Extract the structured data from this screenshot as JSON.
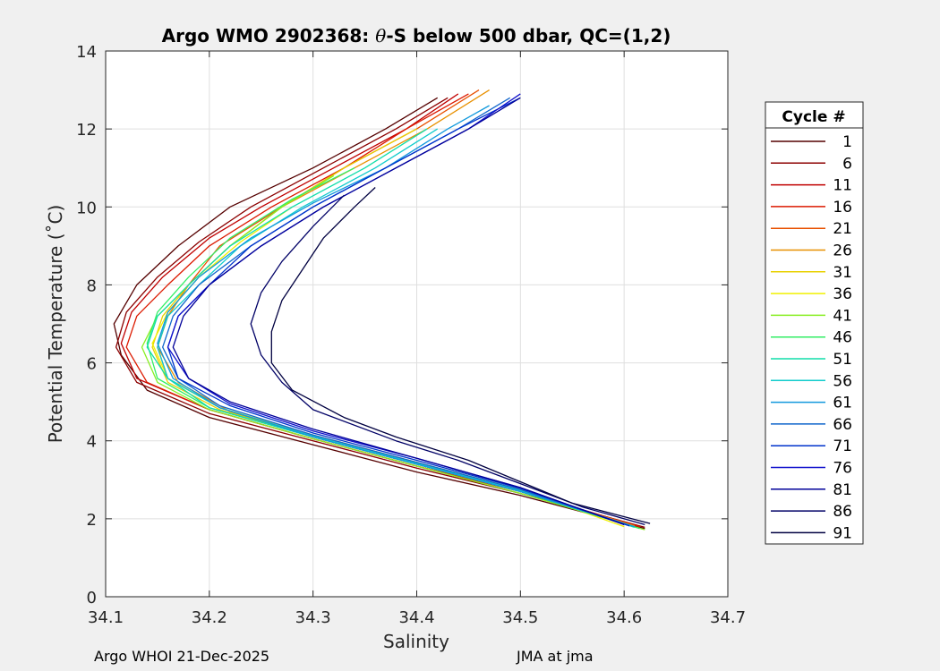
{
  "chart_data": {
    "type": "line",
    "title_prefix": "Argo WMO 2902368: ",
    "title_symbol": "θ",
    "title_suffix": "-S below 500 dbar,  QC=(1,2)",
    "xlabel": "Salinity",
    "ylabel": "Potential Temperature (˚C)",
    "xlim": [
      34.1,
      34.7
    ],
    "ylim": [
      0,
      14
    ],
    "xticks": [
      34.1,
      34.2,
      34.3,
      34.4,
      34.5,
      34.6,
      34.7
    ],
    "yticks": [
      0,
      2,
      4,
      6,
      8,
      10,
      12,
      14
    ],
    "xtick_labels": [
      "34.1",
      "34.2",
      "34.3",
      "34.4",
      "34.5",
      "34.6",
      "34.7"
    ],
    "ytick_labels": [
      "0",
      "2",
      "4",
      "6",
      "8",
      "10",
      "12",
      "14"
    ],
    "grid": true,
    "legend_position": "outside-right",
    "legend_title": "Cycle #",
    "legend": [
      {
        "label": "1",
        "color": "#550000"
      },
      {
        "label": "6",
        "color": "#8c0000"
      },
      {
        "label": "11",
        "color": "#c00000"
      },
      {
        "label": "16",
        "color": "#dc1a00"
      },
      {
        "label": "21",
        "color": "#e85000"
      },
      {
        "label": "26",
        "color": "#e89000"
      },
      {
        "label": "31",
        "color": "#e8d000"
      },
      {
        "label": "36",
        "color": "#f0f000"
      },
      {
        "label": "41",
        "color": "#88ee22"
      },
      {
        "label": "46",
        "color": "#33ee66"
      },
      {
        "label": "51",
        "color": "#11ddaa"
      },
      {
        "label": "56",
        "color": "#11cccc"
      },
      {
        "label": "61",
        "color": "#1199dd"
      },
      {
        "label": "66",
        "color": "#1166cc"
      },
      {
        "label": "71",
        "color": "#0033cc"
      },
      {
        "label": "76",
        "color": "#1111cc"
      },
      {
        "label": "81",
        "color": "#000099"
      },
      {
        "label": "86",
        "color": "#000066"
      },
      {
        "label": "91",
        "color": "#000040"
      }
    ],
    "series": [
      {
        "name": "1",
        "color": "#550000",
        "points": [
          [
            34.62,
            1.75
          ],
          [
            34.5,
            2.6
          ],
          [
            34.4,
            3.2
          ],
          [
            34.3,
            3.9
          ],
          [
            34.2,
            4.6
          ],
          [
            34.14,
            5.3
          ],
          [
            34.115,
            6.2
          ],
          [
            34.108,
            7.0
          ],
          [
            34.13,
            8.0
          ],
          [
            34.17,
            9.0
          ],
          [
            34.22,
            10.0
          ],
          [
            34.3,
            11.0
          ],
          [
            34.37,
            12.0
          ],
          [
            34.42,
            12.8
          ]
        ]
      },
      {
        "name": "6",
        "color": "#8c0000",
        "points": [
          [
            34.62,
            1.78
          ],
          [
            34.5,
            2.65
          ],
          [
            34.4,
            3.3
          ],
          [
            34.3,
            4.0
          ],
          [
            34.2,
            4.7
          ],
          [
            34.13,
            5.5
          ],
          [
            34.11,
            6.4
          ],
          [
            34.12,
            7.3
          ],
          [
            34.15,
            8.2
          ],
          [
            34.19,
            9.1
          ],
          [
            34.24,
            10.0
          ],
          [
            34.31,
            11.0
          ],
          [
            34.38,
            12.0
          ],
          [
            34.43,
            12.8
          ]
        ]
      },
      {
        "name": "11",
        "color": "#c00000",
        "points": [
          [
            34.615,
            1.8
          ],
          [
            34.5,
            2.7
          ],
          [
            34.4,
            3.35
          ],
          [
            34.3,
            4.05
          ],
          [
            34.2,
            4.8
          ],
          [
            34.13,
            5.6
          ],
          [
            34.115,
            6.5
          ],
          [
            34.125,
            7.3
          ],
          [
            34.155,
            8.2
          ],
          [
            34.2,
            9.2
          ],
          [
            34.25,
            10.0
          ],
          [
            34.32,
            11.0
          ],
          [
            34.39,
            12.0
          ],
          [
            34.44,
            12.9
          ]
        ]
      },
      {
        "name": "16",
        "color": "#dc1a00",
        "points": [
          [
            34.615,
            1.8
          ],
          [
            34.5,
            2.7
          ],
          [
            34.4,
            3.35
          ],
          [
            34.3,
            4.05
          ],
          [
            34.2,
            4.8
          ],
          [
            34.14,
            5.5
          ],
          [
            34.12,
            6.4
          ],
          [
            34.13,
            7.2
          ],
          [
            34.16,
            8.0
          ],
          [
            34.2,
            9.0
          ],
          [
            34.26,
            10.0
          ],
          [
            34.33,
            11.0
          ],
          [
            34.39,
            12.0
          ],
          [
            34.45,
            12.9
          ]
        ]
      },
      {
        "name": "21",
        "color": "#e85000",
        "points": [
          [
            34.61,
            1.82
          ],
          [
            34.5,
            2.7
          ],
          [
            34.4,
            3.4
          ],
          [
            34.3,
            4.1
          ],
          [
            34.21,
            4.85
          ],
          [
            34.16,
            5.6
          ],
          [
            34.15,
            6.4
          ],
          [
            34.16,
            7.2
          ],
          [
            34.18,
            8.0
          ],
          [
            34.21,
            9.0
          ],
          [
            34.27,
            10.0
          ],
          [
            34.33,
            11.0
          ],
          [
            34.4,
            12.0
          ],
          [
            34.46,
            13.0
          ]
        ]
      },
      {
        "name": "26",
        "color": "#e89000",
        "points": [
          [
            34.61,
            1.82
          ],
          [
            34.5,
            2.7
          ],
          [
            34.4,
            3.4
          ],
          [
            34.3,
            4.1
          ],
          [
            34.22,
            4.75
          ],
          [
            34.17,
            5.5
          ],
          [
            34.15,
            6.4
          ],
          [
            34.16,
            7.2
          ],
          [
            34.18,
            8.0
          ],
          [
            34.22,
            9.0
          ],
          [
            34.27,
            10.0
          ],
          [
            34.34,
            11.0
          ],
          [
            34.41,
            12.0
          ],
          [
            34.47,
            13.0
          ]
        ]
      },
      {
        "name": "31",
        "color": "#e8d000",
        "points": [
          [
            34.61,
            1.8
          ],
          [
            34.5,
            2.7
          ],
          [
            34.4,
            3.4
          ],
          [
            34.3,
            4.1
          ],
          [
            34.21,
            4.8
          ],
          [
            34.16,
            5.5
          ],
          [
            34.145,
            6.4
          ],
          [
            34.155,
            7.2
          ],
          [
            34.18,
            8.0
          ],
          [
            34.22,
            9.0
          ],
          [
            34.27,
            10.0
          ],
          [
            34.33,
            11.0
          ],
          [
            34.4,
            12.0
          ]
        ]
      },
      {
        "name": "36",
        "color": "#f0f000",
        "points": [
          [
            34.6,
            1.8
          ],
          [
            34.5,
            2.75
          ],
          [
            34.4,
            3.45
          ],
          [
            34.3,
            4.15
          ],
          [
            34.21,
            4.85
          ],
          [
            34.16,
            5.6
          ],
          [
            34.145,
            6.5
          ],
          [
            34.16,
            7.3
          ],
          [
            34.19,
            8.2
          ],
          [
            34.23,
            9.1
          ],
          [
            34.28,
            10.0
          ]
        ]
      },
      {
        "name": "41",
        "color": "#88ee22",
        "points": [
          [
            34.62,
            1.72
          ],
          [
            34.5,
            2.65
          ],
          [
            34.4,
            3.35
          ],
          [
            34.3,
            4.05
          ],
          [
            34.2,
            4.8
          ],
          [
            34.15,
            5.5
          ],
          [
            34.135,
            6.4
          ],
          [
            34.15,
            7.2
          ],
          [
            34.18,
            8.0
          ],
          [
            34.22,
            9.0
          ],
          [
            34.27,
            10.0
          ],
          [
            34.32,
            10.8
          ]
        ]
      },
      {
        "name": "46",
        "color": "#33ee66",
        "points": [
          [
            34.615,
            1.75
          ],
          [
            34.5,
            2.7
          ],
          [
            34.4,
            3.4
          ],
          [
            34.3,
            4.1
          ],
          [
            34.2,
            4.85
          ],
          [
            34.15,
            5.6
          ],
          [
            34.14,
            6.5
          ],
          [
            34.15,
            7.3
          ],
          [
            34.18,
            8.2
          ],
          [
            34.22,
            9.2
          ],
          [
            34.28,
            10.2
          ],
          [
            34.34,
            11.0
          ]
        ]
      },
      {
        "name": "51",
        "color": "#11ddaa",
        "points": [
          [
            34.61,
            1.78
          ],
          [
            34.5,
            2.7
          ],
          [
            34.4,
            3.4
          ],
          [
            34.3,
            4.1
          ],
          [
            34.2,
            4.85
          ],
          [
            34.16,
            5.6
          ],
          [
            34.14,
            6.4
          ],
          [
            34.15,
            7.2
          ],
          [
            34.18,
            8.0
          ],
          [
            34.22,
            9.0
          ],
          [
            34.28,
            10.0
          ],
          [
            34.35,
            11.0
          ],
          [
            34.41,
            12.0
          ]
        ]
      },
      {
        "name": "56",
        "color": "#11cccc",
        "points": [
          [
            34.61,
            1.8
          ],
          [
            34.5,
            2.72
          ],
          [
            34.4,
            3.42
          ],
          [
            34.3,
            4.12
          ],
          [
            34.21,
            4.85
          ],
          [
            34.16,
            5.6
          ],
          [
            34.15,
            6.4
          ],
          [
            34.16,
            7.2
          ],
          [
            34.19,
            8.0
          ],
          [
            34.23,
            9.0
          ],
          [
            34.29,
            10.0
          ],
          [
            34.36,
            11.0
          ],
          [
            34.42,
            12.0
          ]
        ]
      },
      {
        "name": "61",
        "color": "#1199dd",
        "points": [
          [
            34.61,
            1.8
          ],
          [
            34.5,
            2.7
          ],
          [
            34.4,
            3.4
          ],
          [
            34.3,
            4.1
          ],
          [
            34.21,
            4.85
          ],
          [
            34.165,
            5.6
          ],
          [
            34.15,
            6.5
          ],
          [
            34.16,
            7.3
          ],
          [
            34.19,
            8.2
          ],
          [
            34.24,
            9.2
          ],
          [
            34.3,
            10.1
          ],
          [
            34.37,
            11.0
          ],
          [
            34.43,
            12.0
          ],
          [
            34.47,
            12.6
          ]
        ]
      },
      {
        "name": "66",
        "color": "#1166cc",
        "points": [
          [
            34.605,
            1.82
          ],
          [
            34.5,
            2.75
          ],
          [
            34.4,
            3.45
          ],
          [
            34.3,
            4.15
          ],
          [
            34.21,
            4.9
          ],
          [
            34.17,
            5.6
          ],
          [
            34.155,
            6.4
          ],
          [
            34.165,
            7.2
          ],
          [
            34.19,
            8.0
          ],
          [
            34.24,
            9.0
          ],
          [
            34.3,
            10.0
          ],
          [
            34.37,
            11.0
          ],
          [
            34.44,
            12.0
          ],
          [
            34.49,
            12.8
          ]
        ]
      },
      {
        "name": "71",
        "color": "#0033cc",
        "points": [
          [
            34.605,
            1.82
          ],
          [
            34.5,
            2.78
          ],
          [
            34.4,
            3.5
          ],
          [
            34.3,
            4.2
          ],
          [
            34.22,
            4.9
          ],
          [
            34.17,
            5.6
          ],
          [
            34.16,
            6.4
          ],
          [
            34.17,
            7.2
          ],
          [
            34.2,
            8.0
          ],
          [
            34.24,
            9.0
          ],
          [
            34.3,
            10.0
          ],
          [
            34.37,
            11.0
          ],
          [
            34.44,
            12.0
          ],
          [
            34.5,
            12.8
          ]
        ]
      },
      {
        "name": "76",
        "color": "#1111cc",
        "points": [
          [
            34.6,
            1.85
          ],
          [
            34.5,
            2.8
          ],
          [
            34.4,
            3.55
          ],
          [
            34.3,
            4.25
          ],
          [
            34.22,
            4.95
          ],
          [
            34.18,
            5.6
          ],
          [
            34.16,
            6.4
          ],
          [
            34.17,
            7.2
          ],
          [
            34.2,
            8.0
          ],
          [
            34.25,
            9.0
          ],
          [
            34.31,
            10.0
          ],
          [
            34.38,
            11.0
          ],
          [
            34.45,
            12.0
          ],
          [
            34.5,
            12.9
          ]
        ]
      },
      {
        "name": "81",
        "color": "#000099",
        "points": [
          [
            34.6,
            1.85
          ],
          [
            34.5,
            2.8
          ],
          [
            34.4,
            3.55
          ],
          [
            34.3,
            4.3
          ],
          [
            34.22,
            5.0
          ],
          [
            34.18,
            5.6
          ],
          [
            34.165,
            6.4
          ],
          [
            34.175,
            7.2
          ],
          [
            34.2,
            8.0
          ],
          [
            34.25,
            9.0
          ],
          [
            34.31,
            10.0
          ],
          [
            34.38,
            11.0
          ],
          [
            34.45,
            12.0
          ],
          [
            34.5,
            12.8
          ]
        ]
      },
      {
        "name": "86",
        "color": "#000066",
        "points": [
          [
            34.62,
            1.85
          ],
          [
            34.56,
            2.3
          ],
          [
            34.5,
            2.9
          ],
          [
            34.44,
            3.5
          ],
          [
            34.38,
            4.0
          ],
          [
            34.3,
            4.8
          ],
          [
            34.27,
            5.5
          ],
          [
            34.25,
            6.2
          ],
          [
            34.24,
            7.0
          ],
          [
            34.25,
            7.8
          ],
          [
            34.27,
            8.6
          ],
          [
            34.3,
            9.5
          ],
          [
            34.33,
            10.3
          ]
        ]
      },
      {
        "name": "91",
        "color": "#000040",
        "points": [
          [
            34.625,
            1.88
          ],
          [
            34.55,
            2.4
          ],
          [
            34.5,
            2.95
          ],
          [
            34.45,
            3.5
          ],
          [
            34.38,
            4.1
          ],
          [
            34.33,
            4.6
          ],
          [
            34.28,
            5.3
          ],
          [
            34.26,
            6.0
          ],
          [
            34.26,
            6.8
          ],
          [
            34.27,
            7.6
          ],
          [
            34.29,
            8.4
          ],
          [
            34.31,
            9.2
          ],
          [
            34.34,
            10.0
          ],
          [
            34.36,
            10.5
          ]
        ]
      }
    ]
  },
  "footer": {
    "left": "Argo WHOI 21-Dec-2025",
    "right": "JMA at jma"
  }
}
